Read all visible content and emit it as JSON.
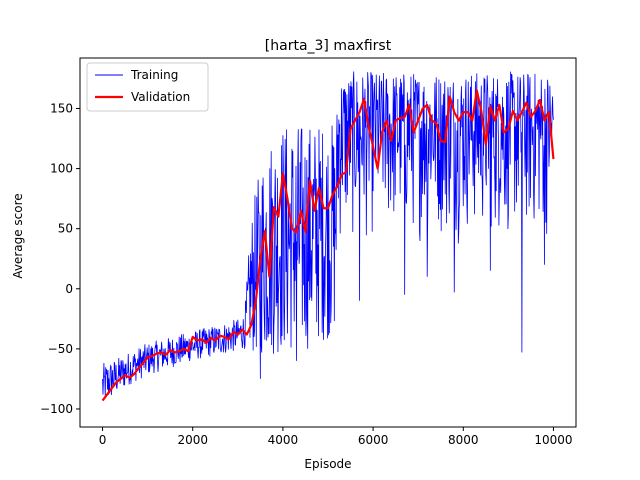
{
  "chart_data": {
    "type": "line",
    "title": "[harta_3] maxfirst",
    "xlabel": "Episode",
    "ylabel": "Average score",
    "xlim": [
      -500,
      10500
    ],
    "ylim": [
      -115,
      192
    ],
    "xticks": [
      0,
      2000,
      4000,
      6000,
      8000,
      10000
    ],
    "yticks": [
      -100,
      -50,
      0,
      50,
      100,
      150
    ],
    "grid": false,
    "legend_position": "top-left",
    "series": [
      {
        "name": "Training",
        "color": "#0000ff",
        "style": "noisy-band",
        "envelope": {
          "x": [
            0,
            300,
            600,
            1000,
            1500,
            2000,
            2500,
            3000,
            3150,
            3300,
            3600,
            4000,
            4400,
            4800,
            5150,
            5250,
            5600,
            6000,
            7000,
            8000,
            9000,
            10000
          ],
          "lower": [
            -100,
            -88,
            -80,
            -72,
            -66,
            -60,
            -56,
            -52,
            -50,
            -55,
            -58,
            -55,
            -55,
            -45,
            -40,
            25,
            30,
            35,
            35,
            35,
            35,
            35
          ],
          "upper": [
            -62,
            -58,
            -52,
            -45,
            -40,
            -35,
            -30,
            -25,
            -20,
            62,
            125,
            140,
            140,
            140,
            140,
            180,
            181,
            181,
            181,
            181,
            181,
            181
          ]
        },
        "spikes": [
          [
            3500,
            -75
          ],
          [
            4300,
            -60
          ],
          [
            5700,
            -10
          ],
          [
            6700,
            -5
          ],
          [
            7200,
            10
          ],
          [
            7800,
            -3
          ],
          [
            8600,
            15
          ],
          [
            9300,
            -53
          ],
          [
            9800,
            20
          ]
        ]
      },
      {
        "name": "Validation",
        "color": "#ff0000",
        "style": "line",
        "x": [
          0,
          100,
          200,
          300,
          400,
          500,
          600,
          700,
          800,
          900,
          1000,
          1100,
          1200,
          1300,
          1400,
          1500,
          1600,
          1700,
          1800,
          1900,
          2000,
          2100,
          2200,
          2300,
          2400,
          2500,
          2600,
          2700,
          2800,
          2900,
          3000,
          3100,
          3200,
          3300,
          3400,
          3500,
          3600,
          3700,
          3800,
          3900,
          4000,
          4100,
          4200,
          4300,
          4400,
          4500,
          4600,
          4700,
          4800,
          4900,
          5000,
          5100,
          5200,
          5300,
          5400,
          5500,
          5600,
          5700,
          5800,
          5900,
          6000,
          6100,
          6200,
          6300,
          6400,
          6500,
          6600,
          6700,
          6800,
          6900,
          7000,
          7100,
          7200,
          7300,
          7400,
          7500,
          7600,
          7700,
          7800,
          7900,
          8000,
          8100,
          8200,
          8300,
          8400,
          8500,
          8600,
          8700,
          8800,
          8900,
          9000,
          9100,
          9200,
          9300,
          9400,
          9500,
          9600,
          9700,
          9800,
          9900,
          10000
        ],
        "y": [
          -93,
          -88,
          -83,
          -78,
          -75,
          -72,
          -74,
          -71,
          -66,
          -62,
          -57,
          -56,
          -54,
          -53,
          -55,
          -51,
          -53,
          -52,
          -50,
          -52,
          -40,
          -43,
          -42,
          -45,
          -41,
          -43,
          -39,
          -40,
          -42,
          -36,
          -38,
          -34,
          -38,
          -30,
          -10,
          25,
          48,
          10,
          68,
          60,
          96,
          75,
          50,
          47,
          65,
          47,
          90,
          65,
          84,
          67,
          67,
          78,
          85,
          95,
          97,
          133,
          140,
          147,
          158,
          135,
          118,
          100,
          130,
          140,
          123,
          140,
          142,
          143,
          153,
          130,
          140,
          150,
          153,
          140,
          138,
          123,
          122,
          160,
          147,
          140,
          147,
          147,
          140,
          165,
          148,
          120,
          152,
          140,
          153,
          130,
          133,
          148,
          140,
          147,
          155,
          143,
          148,
          157,
          140,
          147,
          108
        ]
      }
    ]
  }
}
